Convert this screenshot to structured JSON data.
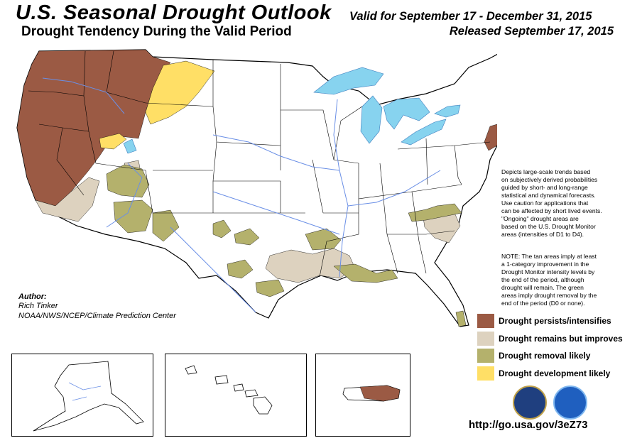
{
  "header": {
    "title": "U.S. Seasonal Drought Outlook",
    "subtitle": "Drought Tendency During the Valid Period",
    "valid": "Valid for September 17 - December 31, 2015",
    "released": "Released September 17, 2015"
  },
  "description": "Depicts large-scale trends based\non subjectively derived probabilities\nguided by short- and long-range\nstatistical and dynamical forecasts.\nUse caution for applications that\ncan be affected by short lived events.\n\"Ongoing\" drought areas are\nbased on the U.S. Drought Monitor\nareas (intensities of D1 to D4).",
  "note": "NOTE: The tan areas imply at least\na 1-category improvement in the\nDrought Monitor intensity levels by\nthe end of the period, although\ndrought will remain. The green\nareas imply drought removal by the\nend of the period (D0 or none).",
  "author": {
    "heading": "Author:",
    "name": "Rich Tinker",
    "org": "NOAA/NWS/NCEP/Climate Prediction Center"
  },
  "legend": [
    {
      "label": "Drought persists/intensifies",
      "color": "#9b5a44"
    },
    {
      "label": "Drought remains but improves",
      "color": "#ddd2bf"
    },
    {
      "label": "Drought removal likely",
      "color": "#b4b16c"
    },
    {
      "label": "Drought development likely",
      "color": "#ffdf66"
    }
  ],
  "colors": {
    "water": "#87d3ef",
    "boundary": "#000000",
    "river": "#6a8fe6"
  },
  "url": "http://go.usa.gov/3eZ73"
}
